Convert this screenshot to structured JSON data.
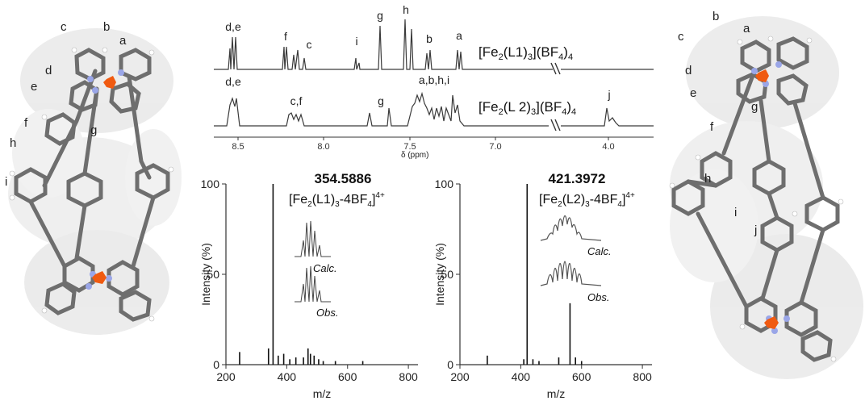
{
  "left_structure": {
    "labels": [
      "a",
      "b",
      "c",
      "d",
      "e",
      "f",
      "g",
      "h",
      "i"
    ]
  },
  "right_structure": {
    "labels": [
      "a",
      "b",
      "c",
      "d",
      "e",
      "f",
      "g",
      "h",
      "i",
      "j"
    ]
  },
  "nmr": {
    "xlabel": "δ (ppm)",
    "ticks": [
      "8.5",
      "8.0",
      "7.5",
      "7.0",
      "4.0"
    ],
    "spectrum1": {
      "compound_pre": "[Fe",
      "compound_sub1": "2",
      "compound_mid": "(L1)",
      "compound_sub2": "3",
      "compound_mid2": "](BF",
      "compound_sub3": "4",
      "compound_post": ")",
      "compound_sub4": "4",
      "peak_labels": [
        "d,e",
        "f",
        "c",
        "i",
        "g",
        "h",
        "b",
        "a"
      ]
    },
    "spectrum2": {
      "compound_pre": "[Fe",
      "compound_sub1": "2",
      "compound_mid": "(L 2)",
      "compound_sub2": "3",
      "compound_mid2": "](BF",
      "compound_sub3": "4",
      "compound_post": ")",
      "compound_sub4": "4",
      "peak_labels": [
        "d,e",
        "c,f",
        "g",
        "a,b,h,i",
        "j"
      ]
    }
  },
  "chart_data": [
    {
      "type": "bar",
      "title": "354.5886",
      "ion_pre": "[Fe",
      "ion_sub1": "2",
      "ion_mid": "(L1)",
      "ion_sub2": "3",
      "ion_mid2": "-4BF",
      "ion_sub3": "4",
      "ion_post": "]",
      "ion_sup": "4+",
      "xlabel": "m/z",
      "ylabel": "Intensity (%)",
      "xlim": [
        200,
        800
      ],
      "ylim": [
        0,
        100
      ],
      "xticks": [
        "200",
        "400",
        "600",
        "800"
      ],
      "yticks": [
        "0",
        "50",
        "100"
      ],
      "inset_labels": [
        "Calc.",
        "Obs."
      ],
      "x": [
        245,
        340,
        355,
        372,
        390,
        410,
        430,
        455,
        470,
        478,
        490,
        505,
        520,
        560,
        650
      ],
      "values": [
        7,
        9,
        100,
        5,
        6,
        3,
        4,
        4,
        9,
        6,
        5,
        3,
        2,
        2,
        2
      ]
    },
    {
      "type": "bar",
      "title": "421.3972",
      "ion_pre": "[Fe",
      "ion_sub1": "2",
      "ion_mid": "(L2)",
      "ion_sub2": "3",
      "ion_mid2": "-4BF",
      "ion_sub3": "4",
      "ion_post": "]",
      "ion_sup": "4+",
      "xlabel": "m/z",
      "ylabel": "Intensity (%)",
      "xlim": [
        200,
        800
      ],
      "ylim": [
        0,
        100
      ],
      "xticks": [
        "200",
        "400",
        "600",
        "800"
      ],
      "yticks": [
        "0",
        "50",
        "100"
      ],
      "inset_labels": [
        "Calc.",
        "Obs."
      ],
      "x": [
        290,
        410,
        421,
        440,
        460,
        525,
        562,
        580,
        600
      ],
      "values": [
        5,
        3,
        100,
        3,
        2,
        4,
        34,
        4,
        2
      ]
    }
  ],
  "colors": {
    "spectrum_line": "#3a3a3a",
    "iron_atom": "#f05a10",
    "nitrogen": "#9aa6e8",
    "bond": "#6e6e6e",
    "hull": "#d8d8d8"
  }
}
